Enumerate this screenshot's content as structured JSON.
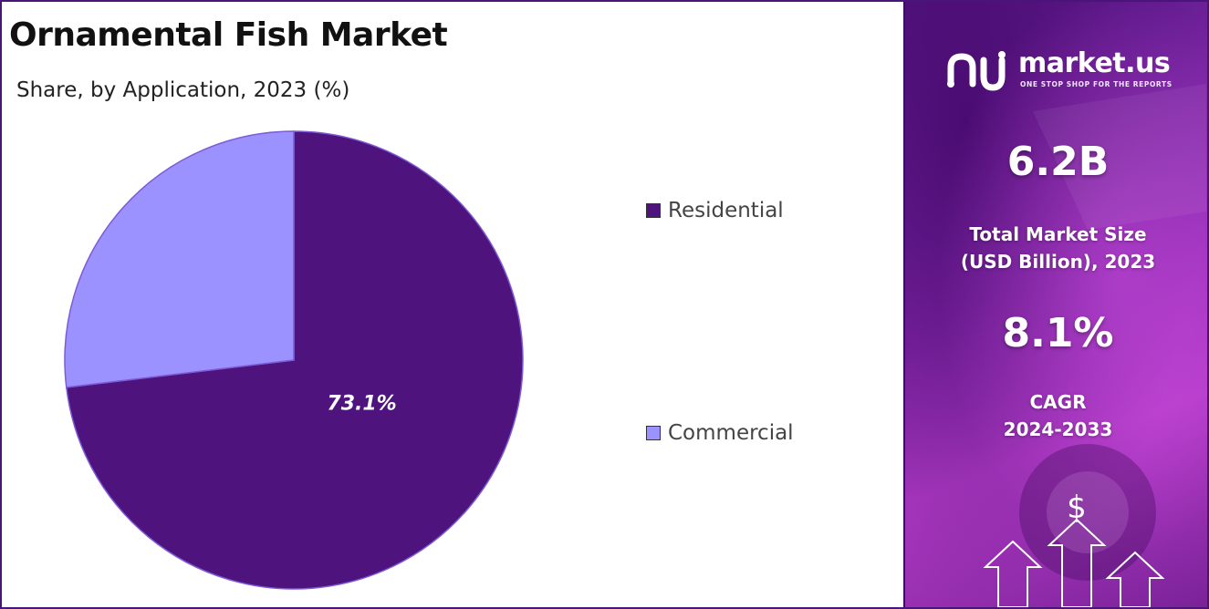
{
  "left": {
    "title": "Ornamental Fish Market",
    "subtitle": "Share, by Application, 2023 (%)"
  },
  "chart_data": {
    "type": "pie",
    "title": "Ornamental Fish Market",
    "subtitle": "Share, by Application, 2023 (%)",
    "categories": [
      "Residential",
      "Commercial"
    ],
    "values": [
      73.1,
      26.9
    ],
    "colors": [
      "#4e137c",
      "#9b92ff"
    ],
    "data_labels": [
      "73.1%",
      ""
    ],
    "legend_placement": "right"
  },
  "right": {
    "logo_name": "market.us",
    "logo_tagline": "ONE STOP SHOP FOR THE REPORTS",
    "market_size_value": "6.2B",
    "market_size_label_line1": "Total Market Size",
    "market_size_label_line2": "(USD Billion), 2023",
    "cagr_value": "8.1%",
    "cagr_label_line1": "CAGR",
    "cagr_label_line2": "2024-2033",
    "dollar_symbol": "$"
  }
}
